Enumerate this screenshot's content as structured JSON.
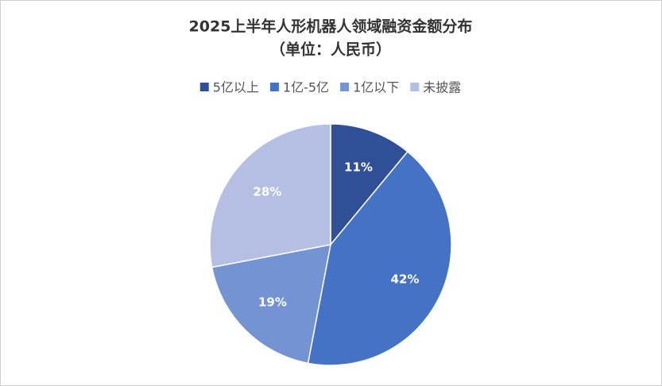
{
  "chart_data": {
    "type": "pie",
    "title": "2025上半年人形机器人领域融资金额分布",
    "subtitle": "（单位：人民币）",
    "categories": [
      "5亿以上",
      "1亿-5亿",
      "1亿以下",
      "未披露"
    ],
    "values": [
      11,
      42,
      19,
      28
    ],
    "value_labels": [
      "11%",
      "42%",
      "19%",
      "28%"
    ],
    "colors": [
      "#2f5097",
      "#4472c4",
      "#7493d3",
      "#b4bfe3"
    ],
    "legend": "top"
  }
}
